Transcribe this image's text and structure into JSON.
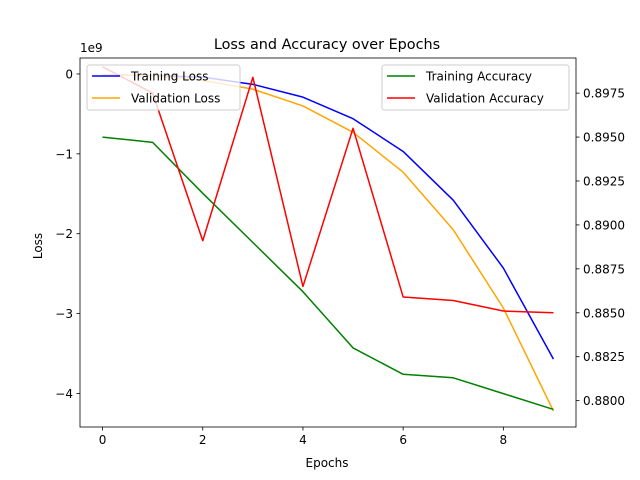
{
  "chart_data": {
    "type": "line",
    "title": "Loss and Accuracy over Epochs",
    "xlabel": "Epochs",
    "ylabel_left": "Loss",
    "ylabel_right": "",
    "left_axis_offset_label": "1e9",
    "x": [
      0,
      1,
      2,
      3,
      4,
      5,
      6,
      7,
      8,
      9
    ],
    "x_ticks": [
      0,
      2,
      4,
      6,
      8
    ],
    "xlim": [
      -0.45,
      9.45
    ],
    "left_axis": {
      "ylim": [
        -4.42,
        0.2
      ],
      "ticks": [
        0,
        -1,
        -2,
        -3,
        -4
      ],
      "tick_labels": [
        "0",
        "−1",
        "−2",
        "−3",
        "−4"
      ],
      "series": [
        {
          "name": "Training Loss",
          "color": "#0000ff",
          "values": [
            -0.01,
            -0.02,
            -0.04,
            -0.13,
            -0.29,
            -0.56,
            -0.97,
            -1.58,
            -2.43,
            -3.57
          ]
        },
        {
          "name": "Validation Loss",
          "color": "#ffa500",
          "values": [
            -0.01,
            -0.02,
            -0.08,
            -0.19,
            -0.4,
            -0.73,
            -1.23,
            -1.95,
            -2.93,
            -4.22
          ]
        }
      ]
    },
    "right_axis": {
      "ylim": [
        0.8785,
        0.8995
      ],
      "ticks": [
        0.88,
        0.8825,
        0.885,
        0.8875,
        0.89,
        0.8925,
        0.895,
        0.8975
      ],
      "tick_labels": [
        "0.8800",
        "0.8825",
        "0.8850",
        "0.8875",
        "0.8900",
        "0.8925",
        "0.8950",
        "0.8975"
      ],
      "series": [
        {
          "name": "Training Accuracy",
          "color": "#008000",
          "values": [
            0.895,
            0.8947,
            0.8918,
            0.889,
            0.8862,
            0.883,
            0.8815,
            0.8813,
            0.8804,
            0.8795
          ]
        },
        {
          "name": "Validation Accuracy",
          "color": "#ff0000",
          "values": [
            0.899,
            0.8975,
            0.8891,
            0.8984,
            0.8865,
            0.8955,
            0.8859,
            0.8857,
            0.8851,
            0.885
          ]
        }
      ]
    },
    "legends": [
      {
        "placement": "top-left",
        "entries": [
          "Training Loss",
          "Validation Loss"
        ]
      },
      {
        "placement": "top-right",
        "entries": [
          "Training Accuracy",
          "Validation Accuracy"
        ]
      }
    ],
    "grid": false
  }
}
